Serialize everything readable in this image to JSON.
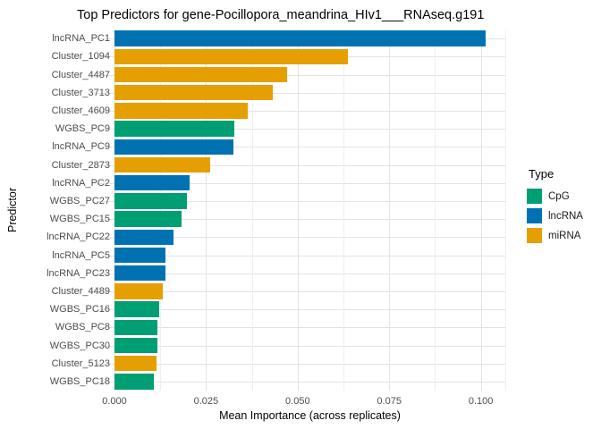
{
  "title": "Top Predictors for gene-Pocillopora_meandrina_HIv1___RNAseq.g191",
  "chart_data": {
    "type": "bar",
    "orientation": "horizontal",
    "title": "Top Predictors for gene-Pocillopora_meandrina_HIv1___RNAseq.g191",
    "xlabel": "Mean Importance (across replicates)",
    "ylabel": "Predictor",
    "xlim": [
      -0.005,
      0.1067
    ],
    "x_ticks": [
      0,
      0.025,
      0.05,
      0.075,
      0.1
    ],
    "x_tick_labels": [
      "0.000",
      "0.025",
      "0.050",
      "0.075",
      "0.100"
    ],
    "x_minor_ticks": [
      0.0125,
      0.0375,
      0.0625,
      0.0875
    ],
    "grid": true,
    "legend": {
      "title": "Type",
      "position": "right",
      "entries": [
        {
          "label": "CpG",
          "color": "#009E73"
        },
        {
          "label": "lncRNA",
          "color": "#0072B2"
        },
        {
          "label": "miRNA",
          "color": "#E69F00"
        }
      ]
    },
    "bars": [
      {
        "category": "lncRNA_PC1",
        "type": "lncRNA",
        "value": 0.1013
      },
      {
        "category": "Cluster_1094",
        "type": "miRNA",
        "value": 0.0636
      },
      {
        "category": "Cluster_4487",
        "type": "miRNA",
        "value": 0.047
      },
      {
        "category": "Cluster_3713",
        "type": "miRNA",
        "value": 0.0431
      },
      {
        "category": "Cluster_4609",
        "type": "miRNA",
        "value": 0.0363
      },
      {
        "category": "WGBS_PC9",
        "type": "CpG",
        "value": 0.0328
      },
      {
        "category": "lncRNA_PC9",
        "type": "lncRNA",
        "value": 0.0324
      },
      {
        "category": "Cluster_2873",
        "type": "miRNA",
        "value": 0.0262
      },
      {
        "category": "lncRNA_PC2",
        "type": "lncRNA",
        "value": 0.0205
      },
      {
        "category": "WGBS_PC27",
        "type": "CpG",
        "value": 0.0197
      },
      {
        "category": "WGBS_PC15",
        "type": "CpG",
        "value": 0.0184
      },
      {
        "category": "lncRNA_PC22",
        "type": "lncRNA",
        "value": 0.016
      },
      {
        "category": "lncRNA_PC5",
        "type": "lncRNA",
        "value": 0.014
      },
      {
        "category": "lncRNA_PC23",
        "type": "lncRNA",
        "value": 0.014
      },
      {
        "category": "Cluster_4489",
        "type": "miRNA",
        "value": 0.0131
      },
      {
        "category": "WGBS_PC16",
        "type": "CpG",
        "value": 0.0123
      },
      {
        "category": "WGBS_PC8",
        "type": "CpG",
        "value": 0.0118
      },
      {
        "category": "WGBS_PC30",
        "type": "CpG",
        "value": 0.0118
      },
      {
        "category": "Cluster_5123",
        "type": "miRNA",
        "value": 0.0114
      },
      {
        "category": "WGBS_PC18",
        "type": "CpG",
        "value": 0.0107
      }
    ]
  },
  "colors": {
    "CpG": "#009E73",
    "lncRNA": "#0072B2",
    "miRNA": "#E69F00",
    "grid_major": "#e3e3e3",
    "grid_minor": "#efefef",
    "axis_text": "#4d4d4d",
    "background": "#ffffff"
  }
}
